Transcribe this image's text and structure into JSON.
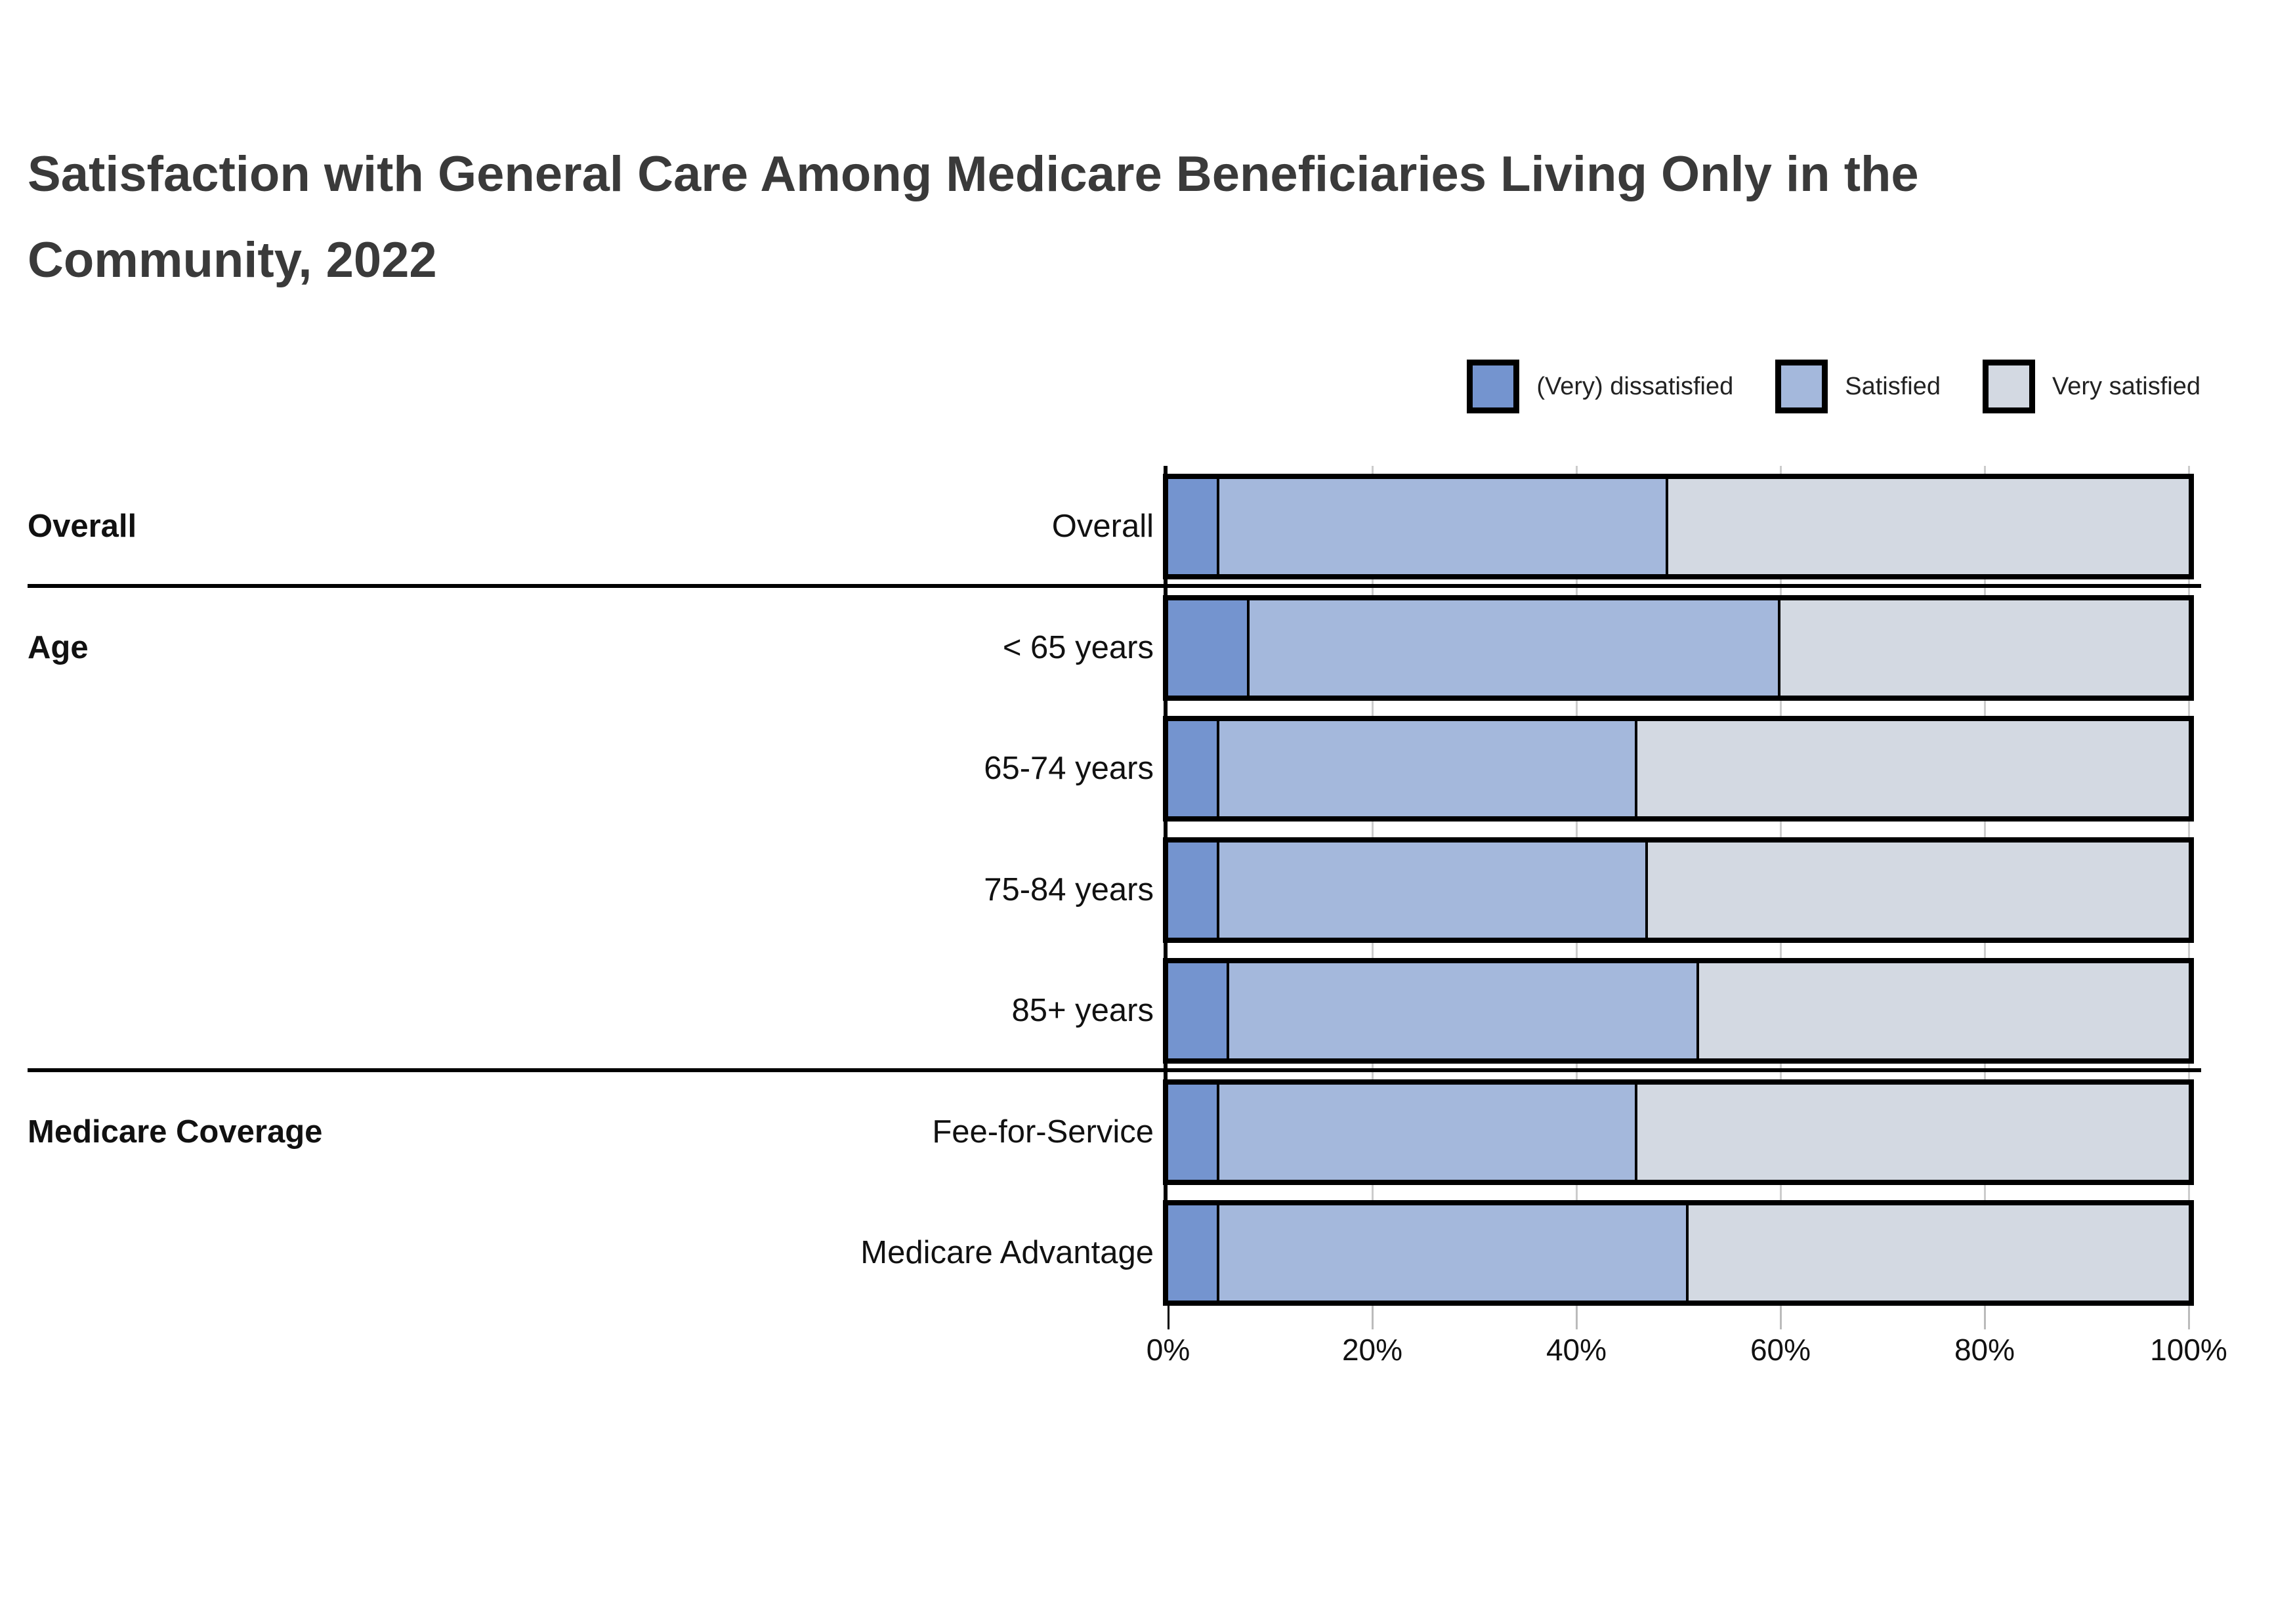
{
  "title": {
    "text": "Satisfaction with General Care Among Medicare Beneficiaries Living Only in the Community, 2022"
  },
  "chart_data": {
    "type": "bar",
    "orientation": "horizontal",
    "stacked": true,
    "unit": "percent",
    "title": "Satisfaction with General Care Among Medicare Beneficiaries Living Only in the Community, 2022",
    "categories": [
      "Overall",
      "< 65 years",
      "65-74 years",
      "75-84 years",
      "85+ years",
      "Fee-for-Service",
      "Medicare Advantage"
    ],
    "groups": [
      {
        "label": "Overall",
        "start_row": 0,
        "end_row": 0
      },
      {
        "label": "Age",
        "start_row": 1,
        "end_row": 4
      },
      {
        "label": "Medicare Coverage",
        "start_row": 5,
        "end_row": 6
      }
    ],
    "series": [
      {
        "name": "(Very) dissatisfied",
        "color": "#7494cf",
        "values": [
          5,
          8,
          5,
          5,
          6,
          5,
          5
        ]
      },
      {
        "name": "Satisfied",
        "color": "#a4b8dc",
        "values": [
          44,
          52,
          41,
          42,
          46,
          41,
          46
        ]
      },
      {
        "name": "Very satisfied",
        "color": "#d3d9e2",
        "values": [
          51,
          40,
          54,
          53,
          48,
          54,
          49
        ]
      }
    ],
    "x_ticks": [
      "0%",
      "20%",
      "40%",
      "60%",
      "80%",
      "100%"
    ],
    "xlim": [
      0,
      100
    ],
    "gridlines": true,
    "legend_position": "top-right"
  },
  "colors": {
    "bar_border": "#000000",
    "gridline": "#cccccc",
    "title_text": "#3a3a3a",
    "label_text": "#111111",
    "background": "#ffffff"
  }
}
